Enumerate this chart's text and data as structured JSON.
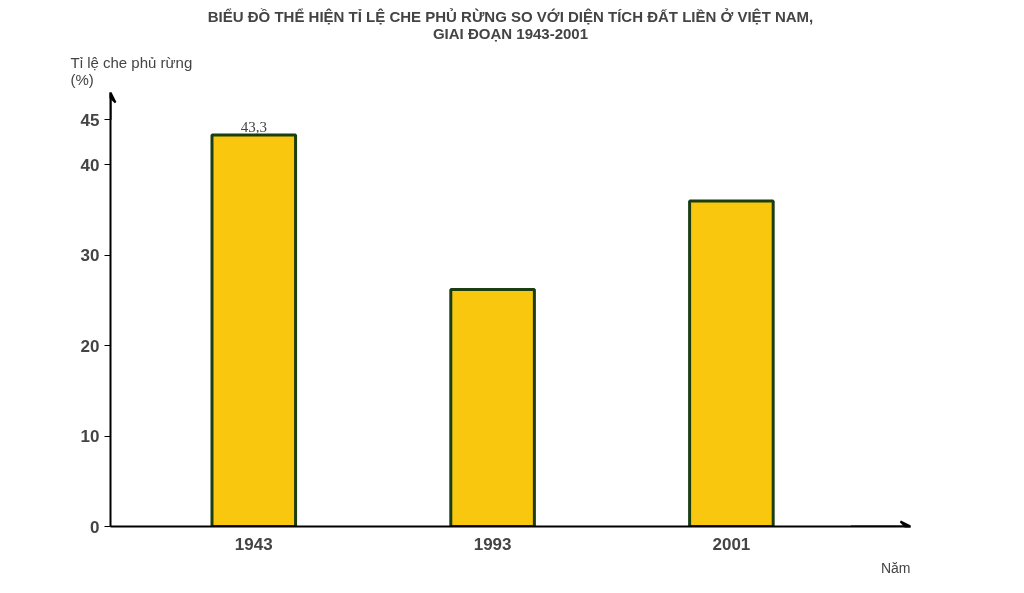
{
  "chart_data": {
    "type": "bar",
    "title": "BIỂU ĐỒ THỂ HIỆN TỈ LỆ CHE PHỦ RỪNG SO VỚI DIỆN TÍCH ĐẤT LIỀN Ở VIỆT NAM,\nGIAI ĐOẠN 1943-2001",
    "ylabel": "Tỉ lệ che phủ rừng\n(%)",
    "xlabel": "Năm",
    "categories": [
      "1943",
      "1993",
      "2001"
    ],
    "values": [
      43.3,
      26.2,
      36.0
    ],
    "value_labels": [
      "43,3",
      null,
      null
    ],
    "color": "#f9c80e",
    "ylim": [
      0,
      48
    ],
    "yticks": [
      0,
      10,
      20,
      30,
      40,
      45
    ],
    "grid": false,
    "legend": false
  }
}
